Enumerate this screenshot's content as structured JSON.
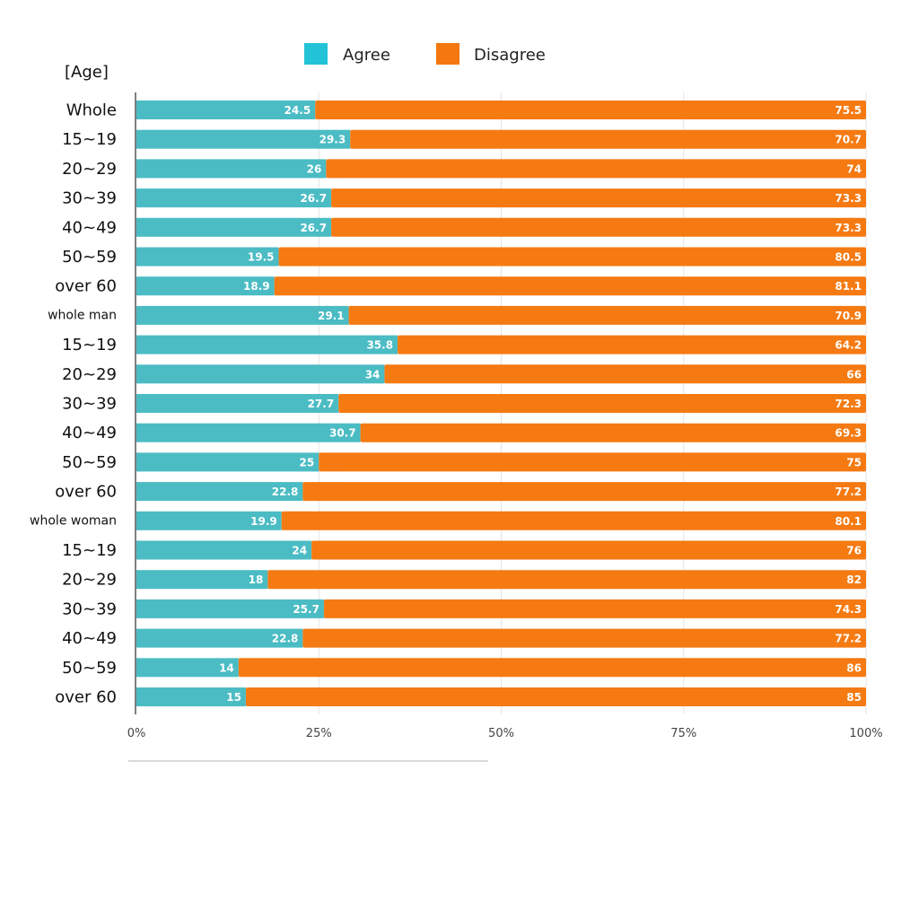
{
  "chart_data": {
    "type": "bar",
    "orientation": "horizontal",
    "stacked": true,
    "y_axis_title": "[Age]",
    "categories": [
      "Whole",
      "15~19",
      "20~29",
      "30~39",
      "40~49",
      "50~59",
      "over 60",
      "whole man",
      "15~19",
      "20~29",
      "30~39",
      "40~49",
      "50~59",
      "over 60",
      "whole woman",
      "15~19",
      "20~29",
      "30~39",
      "40~49",
      "50~59",
      "over 60"
    ],
    "series": [
      {
        "name": "Agree",
        "color": "#4bbcc4",
        "values": [
          24.5,
          29.3,
          26,
          26.7,
          26.7,
          19.5,
          18.9,
          29.1,
          35.8,
          34,
          27.7,
          30.7,
          25,
          22.8,
          19.9,
          24,
          18,
          25.7,
          22.8,
          14,
          15
        ]
      },
      {
        "name": "Disagree",
        "color": "#f57a12",
        "values": [
          75.5,
          70.7,
          74,
          73.3,
          73.3,
          80.5,
          81.1,
          70.9,
          64.2,
          66,
          72.3,
          69.3,
          75,
          77.2,
          80.1,
          76,
          82,
          74.3,
          77.2,
          86,
          85
        ]
      }
    ],
    "legend": {
      "position": "top",
      "items": [
        "Agree",
        "Disagree"
      ],
      "colors": [
        "#22c3d6",
        "#f5770f"
      ]
    },
    "xlim": [
      0,
      100
    ],
    "x_ticks": [
      "0%",
      "25%",
      "50%",
      "75%",
      "100%"
    ],
    "grid": true
  }
}
